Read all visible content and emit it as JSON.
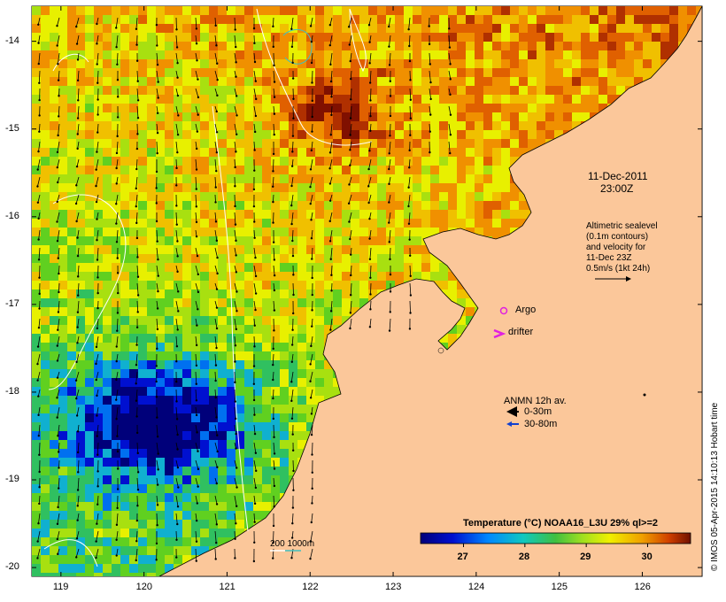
{
  "chart_data": {
    "type": "heatmap",
    "xlim": [
      118.65,
      126.72
    ],
    "ylim": [
      -20.1,
      -13.6
    ],
    "x_ticks": [
      119,
      120,
      121,
      122,
      123,
      124,
      125,
      126
    ],
    "y_ticks": [
      -14,
      -15,
      -16,
      -17,
      -18,
      -19,
      -20
    ],
    "x_tick_labels": [
      "119",
      "120",
      "121",
      "122",
      "123",
      "124",
      "125",
      "126"
    ],
    "y_tick_labels": [
      "-14",
      "-15",
      "-16",
      "-17",
      "-18",
      "-19",
      "-20"
    ],
    "colorbar": {
      "title": "Temperature (°C) NOAA16_L3U 29% ql>=2",
      "min": 26.3,
      "max": 30.7,
      "ticks": [
        27,
        28,
        29,
        30
      ],
      "tick_labels": [
        "27",
        "28",
        "29",
        "30"
      ]
    },
    "colors": {
      "land": "#fbc79a",
      "cold": "#0a0a7a",
      "warm": "#8b1a0a",
      "argo": "#e020e0",
      "drifter": "#e020e0",
      "anmn_deep": "#1040d0"
    }
  },
  "annotations": {
    "datetime_line1": "11-Dec-2011",
    "datetime_line2": "23:00Z",
    "altimetry_lines": [
      "Altimetric sealevel",
      "(0.1m contours)",
      "and velocity for",
      "11-Dec 23Z",
      "0.5m/s (1kt 24h)"
    ],
    "argo_label": "Argo",
    "drifter_label": "drifter",
    "anmn_title": "ANMN 12h av.",
    "anmn_shallow": "0-30m",
    "anmn_deep": "30-80m",
    "depth_labels": "200  1000m",
    "credit": "© IMOS 05-Apr-2015 14:10:13 Hobart time"
  }
}
